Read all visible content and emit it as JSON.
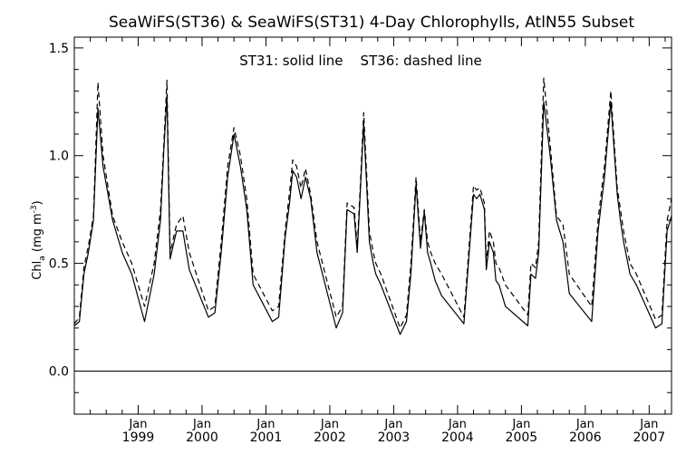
{
  "chart_data": {
    "type": "line",
    "title": "SeaWiFS(ST36) & SeaWiFS(ST31) 4-Day Chlorophylls, AtlN55 Subset",
    "annotation": "ST31: solid line    ST36: dashed line",
    "ylabel": "Chl",
    "ylabel_sub": "a",
    "ylabel_unit_open": " (mg m",
    "ylabel_unit_sup": "-3",
    "ylabel_unit_close": ")",
    "ylim": [
      -0.2,
      1.55
    ],
    "xlim": [
      1998.0,
      2007.35
    ],
    "y_ticks": [
      0.0,
      0.5,
      1.0,
      1.5
    ],
    "y_tick_labels": [
      "0.0",
      "0.5",
      "1.0",
      "1.5"
    ],
    "x_ticks": [
      1999,
      2000,
      2001,
      2002,
      2003,
      2004,
      2005,
      2006,
      2007
    ],
    "x_tick_month_label": "Jan",
    "x_tick_labels": [
      "1999",
      "2000",
      "2001",
      "2002",
      "2003",
      "2004",
      "2005",
      "2006",
      "2007"
    ],
    "zero_line": 0.0,
    "series": [
      {
        "name": "ST31",
        "style": "solid",
        "x": [
          1998.0,
          1998.08,
          1998.15,
          1998.22,
          1998.3,
          1998.37,
          1998.45,
          1998.6,
          1998.75,
          1998.9,
          1999.1,
          1999.25,
          1999.35,
          1999.4,
          1999.45,
          1999.5,
          1999.6,
          1999.7,
          1999.8,
          2000.1,
          2000.2,
          2000.3,
          2000.4,
          2000.5,
          2000.6,
          2000.7,
          2000.8,
          2001.1,
          2001.2,
          2001.3,
          2001.37,
          2001.42,
          2001.48,
          2001.55,
          2001.62,
          2001.7,
          2001.8,
          2002.1,
          2002.2,
          2002.27,
          2002.32,
          2002.38,
          2002.43,
          2002.48,
          2002.53,
          2002.62,
          2002.68,
          2002.72,
          2002.8,
          2003.1,
          2003.2,
          2003.27,
          2003.35,
          2003.42,
          2003.48,
          2003.53,
          2003.58,
          2003.65,
          2003.75,
          2004.1,
          2004.25,
          2004.3,
          2004.35,
          2004.42,
          2004.45,
          2004.5,
          2004.56,
          2004.6,
          2004.65,
          2004.75,
          2005.1,
          2005.15,
          2005.22,
          2005.27,
          2005.35,
          2005.45,
          2005.55,
          2005.65,
          2005.75,
          2006.1,
          2006.2,
          2006.3,
          2006.4,
          2006.5,
          2006.55,
          2006.6,
          2006.7,
          2006.8,
          2007.1,
          2007.2,
          2007.28,
          2007.35
        ],
        "values": [
          0.21,
          0.23,
          0.45,
          0.55,
          0.7,
          1.22,
          0.95,
          0.7,
          0.55,
          0.45,
          0.23,
          0.45,
          0.7,
          1.02,
          1.28,
          0.52,
          0.65,
          0.65,
          0.47,
          0.25,
          0.27,
          0.55,
          0.9,
          1.1,
          0.95,
          0.75,
          0.4,
          0.23,
          0.25,
          0.62,
          0.78,
          0.93,
          0.9,
          0.8,
          0.9,
          0.8,
          0.55,
          0.2,
          0.27,
          0.75,
          0.74,
          0.73,
          0.55,
          0.85,
          1.15,
          0.6,
          0.5,
          0.45,
          0.4,
          0.17,
          0.23,
          0.45,
          0.87,
          0.57,
          0.74,
          0.55,
          0.5,
          0.42,
          0.35,
          0.22,
          0.82,
          0.8,
          0.82,
          0.75,
          0.47,
          0.6,
          0.55,
          0.42,
          0.4,
          0.3,
          0.21,
          0.45,
          0.43,
          0.55,
          1.25,
          1.0,
          0.7,
          0.6,
          0.36,
          0.23,
          0.65,
          0.9,
          1.25,
          0.82,
          0.7,
          0.6,
          0.45,
          0.4,
          0.2,
          0.22,
          0.65,
          0.72
        ]
      },
      {
        "name": "ST36",
        "style": "dashed",
        "x": [
          1998.0,
          1998.08,
          1998.15,
          1998.22,
          1998.3,
          1998.37,
          1998.45,
          1998.6,
          1998.75,
          1998.9,
          1999.1,
          1999.25,
          1999.35,
          1999.4,
          1999.45,
          1999.5,
          1999.6,
          1999.7,
          1999.8,
          2000.1,
          2000.2,
          2000.3,
          2000.4,
          2000.5,
          2000.6,
          2000.7,
          2000.8,
          2001.1,
          2001.2,
          2001.3,
          2001.37,
          2001.42,
          2001.48,
          2001.55,
          2001.62,
          2001.7,
          2001.8,
          2002.1,
          2002.2,
          2002.27,
          2002.32,
          2002.38,
          2002.43,
          2002.48,
          2002.53,
          2002.62,
          2002.68,
          2002.72,
          2002.8,
          2003.1,
          2003.2,
          2003.27,
          2003.35,
          2003.42,
          2003.48,
          2003.53,
          2003.58,
          2003.65,
          2003.75,
          2004.1,
          2004.25,
          2004.3,
          2004.35,
          2004.42,
          2004.45,
          2004.5,
          2004.56,
          2004.6,
          2004.65,
          2004.75,
          2005.1,
          2005.15,
          2005.22,
          2005.27,
          2005.35,
          2005.45,
          2005.55,
          2005.65,
          2005.75,
          2006.1,
          2006.2,
          2006.3,
          2006.4,
          2006.5,
          2006.55,
          2006.6,
          2006.7,
          2006.8,
          2007.1,
          2007.2,
          2007.28,
          2007.35
        ],
        "values": [
          0.22,
          0.25,
          0.48,
          0.58,
          0.72,
          1.34,
          1.0,
          0.72,
          0.6,
          0.5,
          0.3,
          0.5,
          0.75,
          1.05,
          1.35,
          0.55,
          0.68,
          0.72,
          0.55,
          0.28,
          0.3,
          0.6,
          0.95,
          1.13,
          1.0,
          0.8,
          0.45,
          0.28,
          0.3,
          0.65,
          0.83,
          0.98,
          0.95,
          0.85,
          0.94,
          0.82,
          0.6,
          0.25,
          0.3,
          0.78,
          0.77,
          0.76,
          0.58,
          0.88,
          1.2,
          0.65,
          0.55,
          0.5,
          0.45,
          0.2,
          0.26,
          0.5,
          0.9,
          0.6,
          0.75,
          0.6,
          0.55,
          0.5,
          0.45,
          0.25,
          0.86,
          0.84,
          0.85,
          0.78,
          0.5,
          0.65,
          0.6,
          0.5,
          0.48,
          0.4,
          0.26,
          0.5,
          0.48,
          0.6,
          1.36,
          1.05,
          0.72,
          0.68,
          0.45,
          0.3,
          0.7,
          0.95,
          1.3,
          0.85,
          0.75,
          0.65,
          0.5,
          0.45,
          0.24,
          0.26,
          0.7,
          0.8
        ]
      }
    ]
  }
}
